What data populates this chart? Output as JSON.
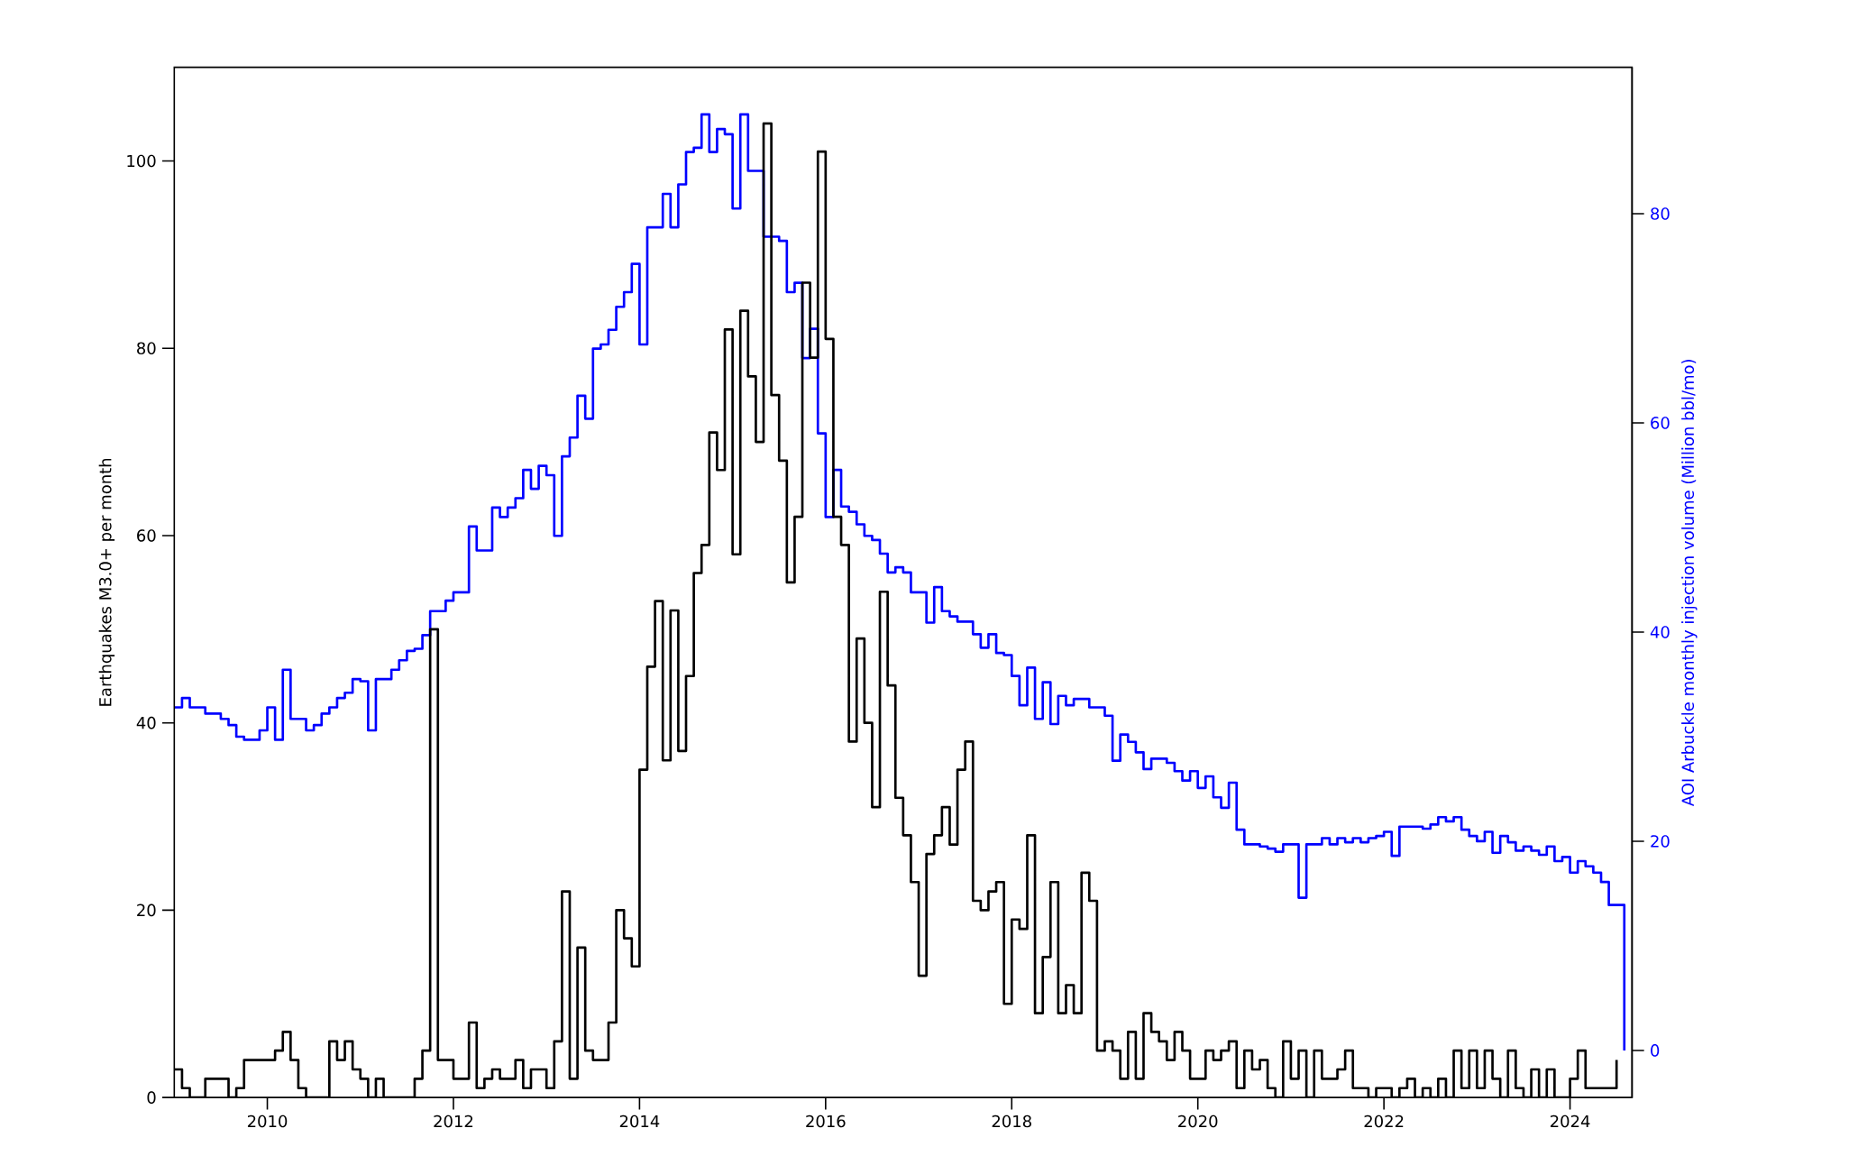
{
  "chart_data": {
    "type": "step",
    "ylabel": "Earthquakes M3.0+ per month",
    "y2label": "AOI Arbuckle monthly injection volume (Million bbl/mo)",
    "x": [
      "2009-01",
      "2009-02",
      "2009-03",
      "2009-04",
      "2009-05",
      "2009-06",
      "2009-07",
      "2009-08",
      "2009-09",
      "2009-10",
      "2009-11",
      "2009-12",
      "2010-01",
      "2010-02",
      "2010-03",
      "2010-04",
      "2010-05",
      "2010-06",
      "2010-07",
      "2010-08",
      "2010-09",
      "2010-10",
      "2010-11",
      "2010-12",
      "2011-01",
      "2011-02",
      "2011-03",
      "2011-04",
      "2011-05",
      "2011-06",
      "2011-07",
      "2011-08",
      "2011-09",
      "2011-10",
      "2011-11",
      "2011-12",
      "2012-01",
      "2012-02",
      "2012-03",
      "2012-04",
      "2012-05",
      "2012-06",
      "2012-07",
      "2012-08",
      "2012-09",
      "2012-10",
      "2012-11",
      "2012-12",
      "2013-01",
      "2013-02",
      "2013-03",
      "2013-04",
      "2013-05",
      "2013-06",
      "2013-07",
      "2013-08",
      "2013-09",
      "2013-10",
      "2013-11",
      "2013-12",
      "2014-01",
      "2014-02",
      "2014-03",
      "2014-04",
      "2014-05",
      "2014-06",
      "2014-07",
      "2014-08",
      "2014-09",
      "2014-10",
      "2014-11",
      "2014-12",
      "2015-01",
      "2015-02",
      "2015-03",
      "2015-04",
      "2015-05",
      "2015-06",
      "2015-07",
      "2015-08",
      "2015-09",
      "2015-10",
      "2015-11",
      "2015-12",
      "2016-01",
      "2016-02",
      "2016-03",
      "2016-04",
      "2016-05",
      "2016-06",
      "2016-07",
      "2016-08",
      "2016-09",
      "2016-10",
      "2016-11",
      "2016-12",
      "2017-01",
      "2017-02",
      "2017-03",
      "2017-04",
      "2017-05",
      "2017-06",
      "2017-07",
      "2017-08",
      "2017-09",
      "2017-10",
      "2017-11",
      "2017-12",
      "2018-01",
      "2018-02",
      "2018-03",
      "2018-04",
      "2018-05",
      "2018-06",
      "2018-07",
      "2018-08",
      "2018-09",
      "2018-10",
      "2018-11",
      "2018-12",
      "2019-01",
      "2019-02",
      "2019-03",
      "2019-04",
      "2019-05",
      "2019-06",
      "2019-07",
      "2019-08",
      "2019-09",
      "2019-10",
      "2019-11",
      "2019-12",
      "2020-01",
      "2020-02",
      "2020-03",
      "2020-04",
      "2020-05",
      "2020-06",
      "2020-07",
      "2020-08",
      "2020-09",
      "2020-10",
      "2020-11",
      "2020-12",
      "2021-01",
      "2021-02",
      "2021-03",
      "2021-04",
      "2021-05",
      "2021-06",
      "2021-07",
      "2021-08",
      "2021-09",
      "2021-10",
      "2021-11",
      "2021-12",
      "2022-01",
      "2022-02",
      "2022-03",
      "2022-04",
      "2022-05",
      "2022-06",
      "2022-07",
      "2022-08",
      "2022-09",
      "2022-10",
      "2022-11",
      "2022-12",
      "2023-01",
      "2023-02",
      "2023-03",
      "2023-04",
      "2023-05",
      "2023-06",
      "2023-07",
      "2023-08",
      "2023-09",
      "2023-10",
      "2023-11",
      "2023-12",
      "2024-01",
      "2024-02",
      "2024-03",
      "2024-04",
      "2024-05",
      "2024-06",
      "2024-07",
      "2024-08"
    ],
    "series": [
      {
        "color": "#000000",
        "values": [
          3,
          1,
          0,
          0,
          2,
          2,
          2,
          0,
          1,
          4,
          4,
          4,
          4,
          5,
          7,
          4,
          1,
          0,
          0,
          0,
          6,
          4,
          6,
          3,
          2,
          0,
          2,
          0,
          0,
          0,
          0,
          2,
          5,
          50,
          4,
          4,
          2,
          2,
          8,
          1,
          2,
          3,
          2,
          2,
          4,
          1,
          3,
          3,
          1,
          6,
          22,
          2,
          16,
          5,
          4,
          4,
          8,
          20,
          17,
          14,
          35,
          46,
          53,
          36,
          52,
          37,
          45,
          56,
          59,
          71,
          67,
          82,
          58,
          84,
          77,
          70,
          104,
          75,
          68,
          55,
          62,
          87,
          79,
          101,
          81,
          62,
          59,
          38,
          49,
          40,
          31,
          54,
          44,
          32,
          28,
          23,
          13,
          26,
          28,
          31,
          27,
          35,
          38,
          21,
          20,
          22,
          23,
          10,
          19,
          18,
          28,
          9,
          15,
          23,
          9,
          12,
          9,
          24,
          21,
          5,
          6,
          5,
          2,
          7,
          2,
          9,
          7,
          6,
          4,
          7,
          5,
          2,
          2,
          5,
          4,
          5,
          6,
          1,
          5,
          3,
          4,
          1,
          0,
          6,
          2,
          5,
          0,
          5,
          2,
          2,
          3,
          5,
          1,
          1,
          0,
          1,
          1,
          0,
          1,
          2,
          0,
          1,
          0,
          2,
          0,
          5,
          1,
          5,
          1,
          5,
          2,
          0,
          5,
          1,
          0,
          3,
          0,
          3,
          0,
          0,
          2,
          5,
          1,
          1,
          1,
          1,
          4,
          null
        ]
      },
      {
        "color": "#0000ff",
        "axis": "y2",
        "values": [
          32.8,
          33.7,
          32.8,
          32.8,
          32.2,
          32.2,
          31.7,
          31.1,
          30.0,
          29.7,
          29.7,
          30.6,
          32.8,
          29.7,
          36.4,
          31.7,
          31.7,
          30.6,
          31.1,
          32.2,
          32.8,
          33.7,
          34.2,
          35.5,
          35.3,
          30.6,
          35.5,
          35.5,
          36.4,
          37.3,
          38.2,
          38.4,
          39.7,
          42.0,
          42.0,
          43.0,
          43.8,
          43.8,
          50.1,
          47.8,
          47.8,
          51.9,
          51.0,
          51.9,
          52.8,
          55.5,
          53.7,
          55.9,
          55.0,
          49.2,
          56.8,
          58.6,
          62.6,
          60.4,
          67.1,
          67.5,
          68.9,
          71.1,
          72.5,
          75.2,
          67.5,
          78.7,
          78.7,
          81.9,
          78.7,
          82.8,
          85.9,
          86.3,
          89.5,
          85.9,
          88.1,
          87.6,
          80.5,
          89.5,
          84.1,
          84.1,
          77.8,
          77.8,
          77.4,
          72.5,
          73.4,
          66.2,
          69.0,
          59.0,
          51.0,
          55.5,
          52.0,
          51.5,
          50.3,
          49.2,
          48.8,
          47.5,
          45.7,
          46.2,
          45.7,
          43.8,
          43.8,
          40.9,
          44.3,
          42.0,
          41.5,
          41.0,
          41.0,
          39.8,
          38.5,
          39.8,
          38.0,
          37.8,
          35.8,
          33.0,
          36.6,
          31.7,
          35.2,
          31.2,
          33.9,
          33.0,
          33.6,
          33.6,
          32.8,
          32.8,
          32.0,
          27.7,
          30.2,
          29.5,
          28.5,
          26.9,
          27.9,
          27.9,
          27.5,
          26.7,
          25.8,
          26.7,
          25.1,
          26.2,
          24.2,
          23.2,
          25.6,
          21.1,
          19.7,
          19.7,
          19.5,
          19.3,
          19.0,
          19.7,
          19.7,
          14.6,
          19.7,
          19.7,
          20.3,
          19.7,
          20.3,
          19.9,
          20.3,
          19.9,
          20.3,
          20.5,
          20.9,
          18.6,
          21.4,
          21.4,
          21.4,
          21.2,
          21.6,
          22.3,
          21.9,
          22.3,
          21.1,
          20.5,
          20.0,
          20.9,
          18.9,
          20.5,
          19.9,
          19.1,
          19.5,
          19.1,
          18.7,
          19.5,
          18.1,
          18.5,
          17.0,
          18.1,
          17.6,
          17.0,
          16.1,
          13.9,
          13.9,
          0
        ]
      }
    ],
    "xlim": [
      "2009-01",
      "2024-09"
    ],
    "xticks": [
      "2010",
      "2012",
      "2014",
      "2016",
      "2018",
      "2020",
      "2022",
      "2024"
    ],
    "ylim": [
      0,
      110
    ],
    "yticks": [
      0,
      20,
      40,
      60,
      80,
      100
    ],
    "y2lim": [
      -4.5,
      94
    ],
    "y2ticks": [
      0,
      20,
      40,
      60,
      80
    ]
  }
}
